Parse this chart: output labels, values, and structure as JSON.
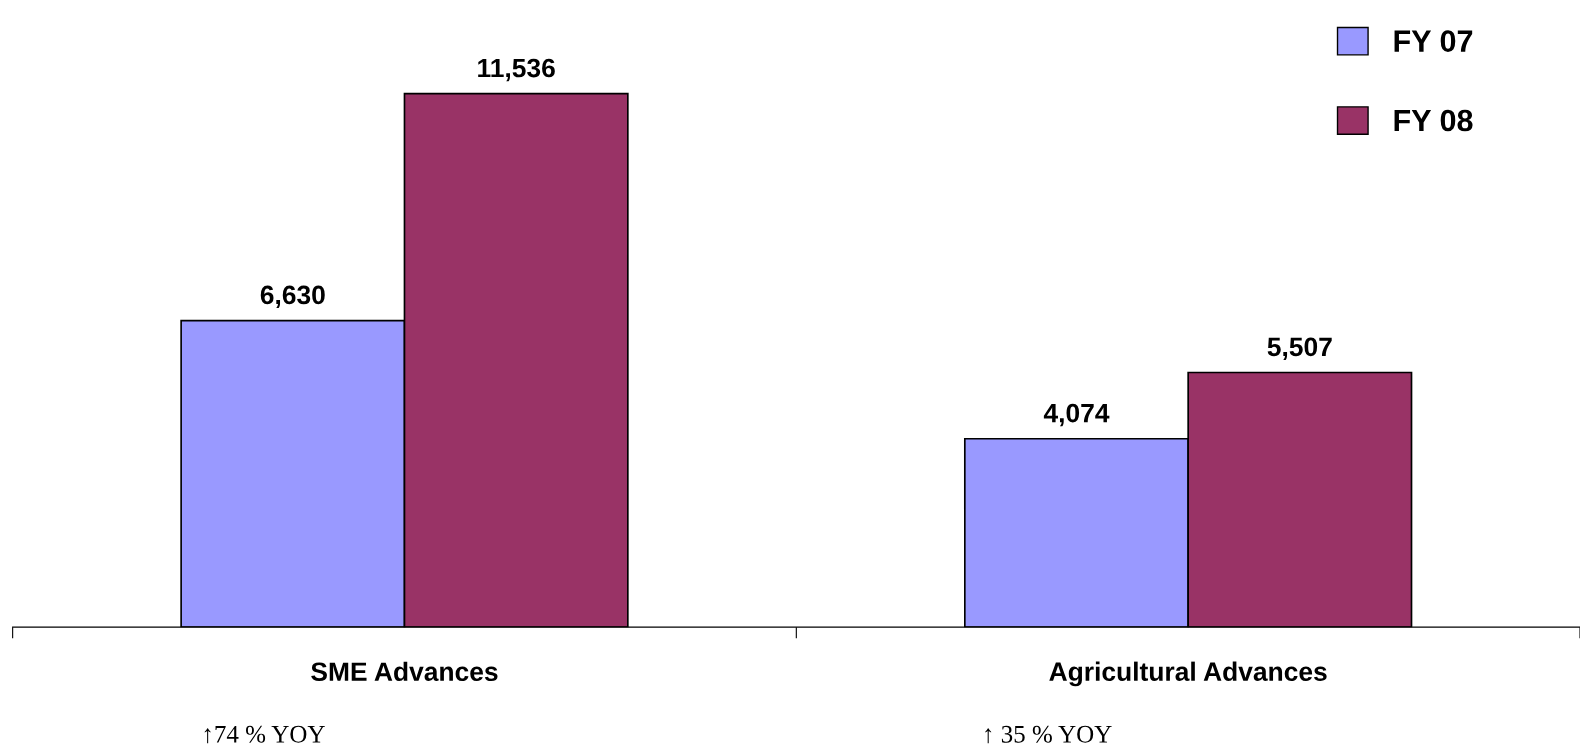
{
  "chart_data": {
    "type": "bar",
    "categories": [
      "SME Advances",
      "Agricultural Advances"
    ],
    "series": [
      {
        "name": "FY 07",
        "color": "#9999ff",
        "values": [
          6630,
          4074
        ],
        "value_labels": [
          "6,630",
          "4,074"
        ]
      },
      {
        "name": "FY 08",
        "color": "#993366",
        "values": [
          11536,
          5507
        ],
        "value_labels": [
          "11,536",
          "5,507"
        ]
      }
    ],
    "legend": "top right",
    "grid": false,
    "annotations": [
      "↑74 % YOY",
      "↑ 35 % YOY"
    ]
  }
}
